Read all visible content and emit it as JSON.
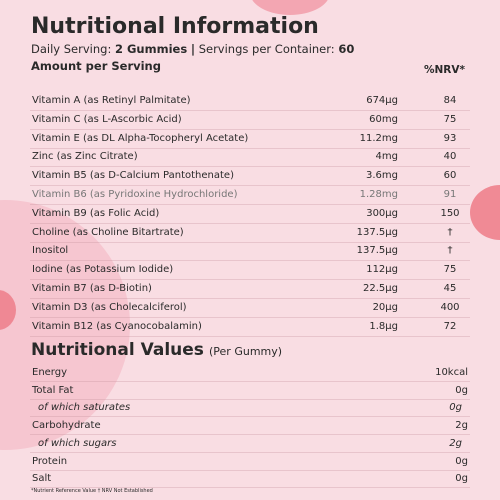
{
  "header": {
    "title": "Nutritional Information",
    "serving_label": "Daily Serving:",
    "serving_value": "2 Gummies",
    "separator": "|",
    "container_label": "Servings per Container:",
    "container_value": "60",
    "amount_heading": "Amount per Serving",
    "nrv_heading": "%NRV*"
  },
  "nutrients": [
    {
      "name": "Vitamin A (as Retinyl Palmitate)",
      "amount": "674µg",
      "nrv": "84"
    },
    {
      "name": "Vitamin C (as L-Ascorbic Acid)",
      "amount": "60mg",
      "nrv": "75"
    },
    {
      "name": "Vitamin E (as DL Alpha-Tocopheryl Acetate)",
      "amount": "11.2mg",
      "nrv": "93"
    },
    {
      "name": "Zinc (as Zinc Citrate)",
      "amount": "4mg",
      "nrv": "40"
    },
    {
      "name": "Vitamin B5 (as D-Calcium Pantothenate)",
      "amount": "3.6mg",
      "nrv": "60"
    },
    {
      "name": "Vitamin B6 (as Pyridoxine Hydrochloride)",
      "amount": "1.28mg",
      "nrv": "91"
    },
    {
      "name": "Vitamin B9 (as Folic Acid)",
      "amount": "300µg",
      "nrv": "150"
    },
    {
      "name": "Choline (as Choline Bitartrate)",
      "amount": "137.5µg",
      "nrv": "†"
    },
    {
      "name": "Inositol",
      "amount": "137.5µg",
      "nrv": "†"
    },
    {
      "name": "Iodine (as Potassium Iodide)",
      "amount": "112µg",
      "nrv": "75"
    },
    {
      "name": "Vitamin B7 (as D-Biotin)",
      "amount": "22.5µg",
      "nrv": "45"
    },
    {
      "name": "Vitamin D3 (as Cholecalciferol)",
      "amount": "20µg",
      "nrv": "400"
    },
    {
      "name": "Vitamin B12 (as Cyanocobalamin)",
      "amount": "1.8µg",
      "nrv": "72"
    }
  ],
  "values_section": {
    "title": "Nutritional Values",
    "subtitle": "(Per Gummy)",
    "rows": [
      {
        "name": "Energy",
        "value": "10kcal"
      },
      {
        "name": "Total Fat",
        "value": "0g"
      },
      {
        "name": "of which saturates",
        "value": "0g",
        "sub": true
      },
      {
        "name": "Carbohydrate",
        "value": "2g"
      },
      {
        "name": "of which sugars",
        "value": "2g",
        "sub": true
      },
      {
        "name": "Protein",
        "value": "0g"
      },
      {
        "name": "Salt",
        "value": "0g"
      }
    ]
  },
  "footnote": "*Nutrient Reference Value † NRV Not Established"
}
